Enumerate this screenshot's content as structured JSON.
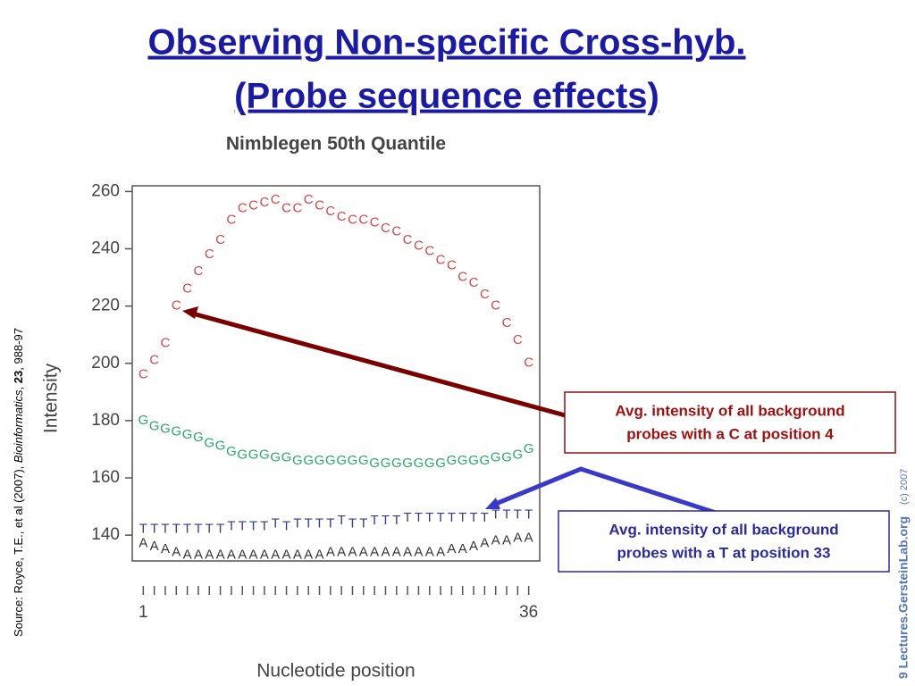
{
  "slide": {
    "title_lines": [
      "Observing Non-specific Cross-hyb.",
      "(Probe sequence effects)"
    ],
    "annotations": [
      "Avg. intensity of all background",
      "probes with a C at position 4",
      "Avg. intensity of all background",
      "probes with a T at position 33"
    ],
    "source": [
      "Source: Royce, T.E., et al (2007), ",
      "Bioinformatics",
      ", ",
      "23",
      ", 988-97"
    ],
    "footer": [
      "9 Lectures.GersteinLab.org",
      "(c) 2007"
    ]
  },
  "chart_data": {
    "type": "letters",
    "title": "Nimblegen 50th Quantile",
    "x_label": "Nucleotide position",
    "y_label": "Intensity",
    "x": [
      1,
      2,
      3,
      4,
      5,
      6,
      7,
      8,
      9,
      10,
      11,
      12,
      13,
      14,
      15,
      16,
      17,
      18,
      19,
      20,
      21,
      22,
      23,
      24,
      25,
      26,
      27,
      28,
      29,
      30,
      31,
      32,
      33,
      34,
      35,
      36
    ],
    "xlim": [
      0,
      37
    ],
    "xticks": [
      1,
      36
    ],
    "ylim": [
      131,
      262
    ],
    "yticks": [
      140,
      160,
      180,
      200,
      220,
      240,
      260
    ],
    "series": [
      {
        "name": "C",
        "color": "#d04848",
        "values": [
          196,
          201,
          207,
          220,
          226,
          232,
          238,
          243,
          250,
          254,
          255,
          256,
          257,
          254,
          254,
          257,
          255,
          253,
          251,
          250,
          250,
          249,
          247,
          246,
          243,
          241,
          239,
          236,
          234,
          230,
          228,
          224,
          220,
          214,
          208,
          200
        ]
      },
      {
        "name": "G",
        "color": "#2aa86a",
        "values": [
          180,
          178,
          177,
          176,
          175,
          174,
          172,
          171,
          169,
          168,
          168,
          168,
          167,
          167,
          166,
          166,
          166,
          166,
          166,
          166,
          166,
          165,
          165,
          165,
          165,
          165,
          165,
          165,
          166,
          166,
          166,
          166,
          167,
          167,
          168,
          170
        ]
      },
      {
        "name": "T",
        "color": "#343c8c",
        "values": [
          142,
          142,
          142,
          142,
          142,
          142,
          142,
          142,
          143,
          143,
          143,
          143,
          144,
          143,
          144,
          144,
          144,
          144,
          145,
          144,
          144,
          145,
          145,
          145,
          146,
          146,
          146,
          146,
          146,
          146,
          146,
          146,
          147,
          147,
          147,
          147
        ]
      },
      {
        "name": "A",
        "color": "#333333",
        "values": [
          137,
          136,
          135,
          134,
          133,
          133,
          133,
          133,
          133,
          133,
          133,
          133,
          133,
          133,
          133,
          133,
          133,
          134,
          134,
          134,
          134,
          134,
          134,
          134,
          134,
          134,
          134,
          134,
          135,
          135,
          136,
          137,
          138,
          138,
          139,
          139
        ]
      }
    ]
  }
}
